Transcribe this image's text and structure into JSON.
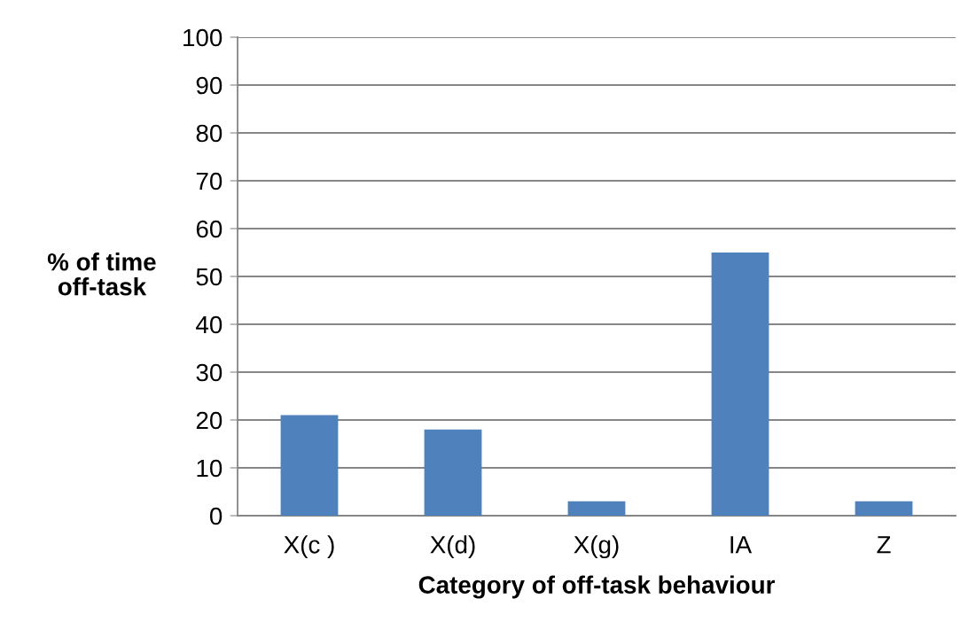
{
  "chart_data": {
    "type": "bar",
    "xlabel": "Category of off-task behaviour",
    "ylabel": "% of time\noff-task",
    "categories": [
      "X(c )",
      "X(d)",
      "X(g)",
      "IA",
      "Z"
    ],
    "values": [
      21,
      18,
      3,
      55,
      3
    ],
    "color": "#4f81bd",
    "ylim": [
      0,
      100
    ],
    "yticks": [
      0,
      10,
      20,
      30,
      40,
      50,
      60,
      70,
      80,
      90,
      100
    ],
    "grid": "y",
    "legend": false
  }
}
